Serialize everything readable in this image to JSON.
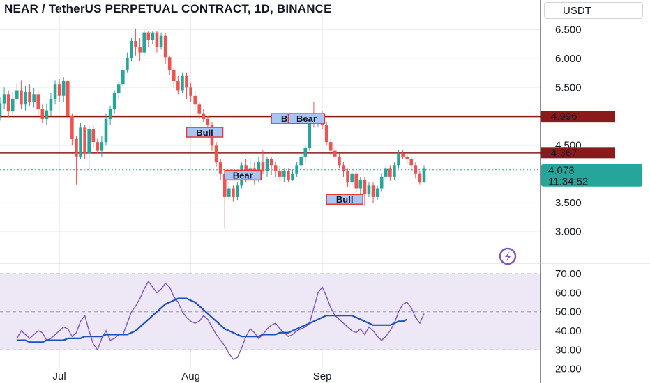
{
  "header": {
    "title": "NEAR / TetherUS PERPETUAL CONTRACT, 1D, BINANCE",
    "currency": "USDT"
  },
  "colors": {
    "up": "#26a69a",
    "down": "#ef5350",
    "level": "#8b1a1a",
    "current": "#26a69a",
    "rsi_line": "#7e57c2",
    "rsi_ma": "#1e4fbf",
    "rsi_band": "#ede7f6"
  },
  "chart_data": [
    {
      "type": "candlestick",
      "title": "NEAR / TetherUS PERPETUAL CONTRACT, 1D, BINANCE",
      "x_ticks": [
        {
          "i": 14,
          "label": "Jul"
        },
        {
          "i": 45,
          "label": "Aug"
        },
        {
          "i": 76,
          "label": "Sep"
        }
      ],
      "y_ticks": [
        "3.000",
        "3.500",
        "4.500",
        "5.000",
        "5.500",
        "6.000",
        "6.500"
      ],
      "ylim": [
        2.55,
        6.65
      ],
      "candles": [
        [
          5.0,
          5.22,
          5.32,
          4.92
        ],
        [
          5.22,
          5.38,
          5.5,
          5.12
        ],
        [
          5.38,
          5.08,
          5.45,
          4.98
        ],
        [
          5.08,
          5.3,
          5.42,
          5.02
        ],
        [
          5.3,
          5.45,
          5.58,
          5.2
        ],
        [
          5.45,
          5.2,
          5.62,
          5.12
        ],
        [
          5.2,
          5.42,
          5.52,
          5.1
        ],
        [
          5.42,
          5.25,
          5.55,
          5.18
        ],
        [
          5.25,
          5.38,
          5.48,
          5.15
        ],
        [
          5.38,
          5.12,
          5.45,
          5.02
        ],
        [
          5.12,
          4.95,
          5.2,
          4.88
        ],
        [
          4.95,
          5.1,
          5.22,
          4.85
        ],
        [
          5.1,
          5.3,
          5.4,
          5.0
        ],
        [
          5.3,
          5.55,
          5.62,
          5.2
        ],
        [
          5.55,
          5.35,
          5.65,
          5.25
        ],
        [
          5.35,
          5.6,
          5.68,
          5.25
        ],
        [
          5.6,
          5.0,
          5.62,
          4.92
        ],
        [
          5.0,
          4.6,
          5.05,
          4.5
        ],
        [
          4.6,
          4.3,
          4.65,
          3.82
        ],
        [
          4.3,
          4.8,
          4.88,
          4.25
        ],
        [
          4.8,
          4.35,
          4.85,
          4.25
        ],
        [
          4.35,
          4.78,
          4.85,
          4.05
        ],
        [
          4.78,
          4.55,
          4.85,
          4.45
        ],
        [
          4.55,
          4.4,
          4.62,
          4.35
        ],
        [
          4.4,
          4.55,
          4.65,
          4.3
        ],
        [
          4.55,
          4.95,
          5.05,
          4.5
        ],
        [
          4.95,
          5.12,
          5.18,
          4.85
        ],
        [
          5.12,
          5.4,
          5.45,
          5.05
        ],
        [
          5.4,
          5.55,
          5.6,
          5.3
        ],
        [
          5.55,
          5.8,
          5.9,
          5.5
        ],
        [
          5.8,
          6.0,
          6.1,
          5.75
        ],
        [
          6.0,
          6.3,
          6.35,
          5.95
        ],
        [
          6.3,
          6.2,
          6.52,
          6.05
        ],
        [
          6.2,
          6.1,
          6.35,
          5.95
        ],
        [
          6.1,
          6.45,
          6.5,
          6.05
        ],
        [
          6.45,
          6.32,
          6.48,
          6.2
        ],
        [
          6.32,
          6.45,
          6.48,
          6.25
        ],
        [
          6.45,
          6.2,
          6.48,
          6.1
        ],
        [
          6.2,
          6.4,
          6.45,
          6.15
        ],
        [
          6.4,
          6.02,
          6.45,
          5.9
        ],
        [
          6.02,
          5.8,
          6.05,
          5.72
        ],
        [
          5.8,
          5.6,
          5.85,
          5.5
        ],
        [
          5.6,
          5.45,
          5.7,
          5.38
        ],
        [
          5.45,
          5.7,
          5.75,
          5.4
        ],
        [
          5.7,
          5.5,
          5.75,
          5.3
        ],
        [
          5.5,
          5.35,
          5.58,
          5.25
        ],
        [
          5.35,
          5.2,
          5.45,
          5.1
        ],
        [
          5.2,
          5.05,
          5.25,
          4.95
        ],
        [
          5.05,
          4.95,
          5.12,
          4.9
        ],
        [
          4.95,
          4.85,
          5.0,
          4.8
        ],
        [
          4.85,
          4.5,
          4.9,
          4.4
        ],
        [
          4.5,
          4.2,
          4.55,
          4.12
        ],
        [
          4.2,
          4.0,
          4.25,
          3.9
        ],
        [
          4.0,
          3.6,
          4.05,
          3.05
        ],
        [
          3.6,
          3.75,
          3.85,
          3.55
        ],
        [
          3.75,
          3.6,
          3.8,
          3.52
        ],
        [
          3.6,
          3.8,
          3.85,
          3.55
        ],
        [
          3.8,
          4.15,
          4.2,
          3.75
        ],
        [
          4.15,
          3.95,
          4.25,
          3.85
        ],
        [
          3.95,
          4.1,
          4.25,
          3.9
        ],
        [
          4.1,
          3.9,
          4.2,
          3.82
        ],
        [
          3.9,
          4.2,
          4.3,
          3.85
        ],
        [
          4.2,
          4.05,
          4.42,
          4.0
        ],
        [
          4.05,
          4.25,
          4.3,
          3.95
        ],
        [
          4.25,
          4.15,
          4.3,
          3.98
        ],
        [
          4.15,
          4.05,
          4.2,
          3.95
        ],
        [
          4.05,
          3.95,
          4.15,
          3.88
        ],
        [
          3.95,
          4.05,
          4.1,
          3.85
        ],
        [
          4.05,
          3.9,
          4.1,
          3.85
        ],
        [
          3.9,
          4.0,
          4.08,
          3.88
        ],
        [
          4.0,
          4.15,
          4.2,
          3.95
        ],
        [
          4.15,
          4.3,
          4.38,
          4.05
        ],
        [
          4.3,
          4.45,
          4.5,
          4.2
        ],
        [
          4.45,
          4.95,
          5.05,
          4.4
        ],
        [
          4.95,
          4.9,
          5.25,
          4.8
        ],
        [
          4.9,
          5.0,
          5.05,
          4.82
        ],
        [
          5.0,
          4.85,
          5.08,
          4.78
        ],
        [
          4.85,
          4.55,
          4.9,
          4.5
        ],
        [
          4.55,
          4.4,
          4.6,
          4.32
        ],
        [
          4.4,
          4.3,
          4.48,
          4.25
        ],
        [
          4.3,
          4.15,
          4.35,
          4.1
        ],
        [
          4.15,
          4.05,
          4.2,
          3.95
        ],
        [
          4.05,
          3.85,
          4.1,
          3.78
        ],
        [
          3.85,
          4.0,
          4.05,
          3.8
        ],
        [
          4.0,
          3.75,
          4.05,
          3.68
        ],
        [
          3.75,
          3.9,
          3.95,
          3.65
        ],
        [
          3.9,
          3.65,
          3.95,
          3.45
        ],
        [
          3.65,
          3.8,
          3.85,
          3.6
        ],
        [
          3.8,
          3.6,
          3.85,
          3.5
        ],
        [
          3.6,
          3.75,
          3.8,
          3.55
        ],
        [
          3.75,
          3.95,
          4.0,
          3.7
        ],
        [
          3.95,
          4.1,
          4.15,
          3.9
        ],
        [
          4.1,
          3.95,
          4.15,
          3.88
        ],
        [
          3.95,
          4.15,
          4.2,
          3.9
        ],
        [
          4.15,
          4.35,
          4.42,
          4.1
        ],
        [
          4.35,
          4.3,
          4.42,
          4.25
        ],
        [
          4.3,
          4.25,
          4.38,
          4.18
        ],
        [
          4.25,
          4.15,
          4.3,
          4.05
        ],
        [
          4.15,
          4.0,
          4.2,
          3.92
        ],
        [
          4.0,
          3.85,
          4.05,
          3.82
        ],
        [
          3.85,
          4.1,
          4.15,
          3.85
        ]
      ],
      "levels": [
        {
          "price": 4.996,
          "label": "4.996"
        },
        {
          "price": 4.367,
          "label": "4.367"
        }
      ],
      "current": {
        "price": 4.073,
        "label": "4.073",
        "countdown": "11:34:52"
      },
      "annotations": [
        {
          "text": "Bull",
          "i": 44,
          "price": 4.72
        },
        {
          "text": "Bull",
          "i": 64,
          "price": 4.96
        },
        {
          "text": "Bear",
          "i": 68,
          "price": 4.96
        },
        {
          "text": "Bear",
          "i": 53,
          "price": 3.98
        },
        {
          "text": "Bull",
          "i": 77,
          "price": 3.56
        }
      ]
    },
    {
      "type": "line",
      "y_ticks": [
        "20.00",
        "30.00",
        "40.00",
        "50.00",
        "60.00",
        "70.00"
      ],
      "ylim": [
        18,
        73
      ],
      "band": [
        30,
        70
      ],
      "midline": 50,
      "series": [
        {
          "values": [
            36,
            40,
            38,
            36,
            38,
            40,
            39,
            35,
            36,
            38,
            40,
            42,
            41,
            37,
            39,
            45,
            48,
            40,
            33,
            30,
            36,
            40,
            35,
            36,
            38,
            38,
            44,
            50,
            53,
            57,
            62,
            66,
            63,
            60,
            62,
            65,
            63,
            58,
            55,
            50,
            47,
            45,
            44,
            45,
            48,
            46,
            42,
            38,
            35,
            32,
            28,
            25,
            26,
            31,
            37,
            41,
            39,
            36,
            38,
            41,
            43,
            44,
            41,
            39,
            37,
            38,
            40,
            41,
            42,
            44,
            52,
            60,
            63,
            58,
            52,
            48,
            46,
            44,
            42,
            40,
            39,
            41,
            38,
            42,
            40,
            37,
            35,
            37,
            40,
            44,
            50,
            54,
            55,
            52,
            47,
            44,
            49
          ]
        },
        {
          "values": [
            35,
            35,
            35,
            34,
            34,
            34,
            34,
            35,
            35,
            35,
            35,
            35,
            36,
            36,
            36,
            36,
            37,
            37,
            37,
            37,
            37,
            38,
            38,
            38,
            38,
            38,
            38,
            39,
            40,
            42,
            44,
            46,
            48,
            50,
            52,
            54,
            55,
            56,
            57,
            57,
            57,
            56,
            55,
            53,
            51,
            49,
            47,
            45,
            43,
            41,
            40,
            39,
            38,
            37,
            37,
            37,
            37,
            37,
            38,
            38,
            38,
            38,
            39,
            39,
            39,
            40,
            41,
            42,
            43,
            44,
            45,
            46,
            47,
            48,
            48,
            48,
            48,
            48,
            48,
            48,
            47,
            46,
            45,
            44,
            43,
            43,
            43,
            43,
            43,
            44,
            45,
            45,
            46
          ]
        }
      ]
    }
  ]
}
